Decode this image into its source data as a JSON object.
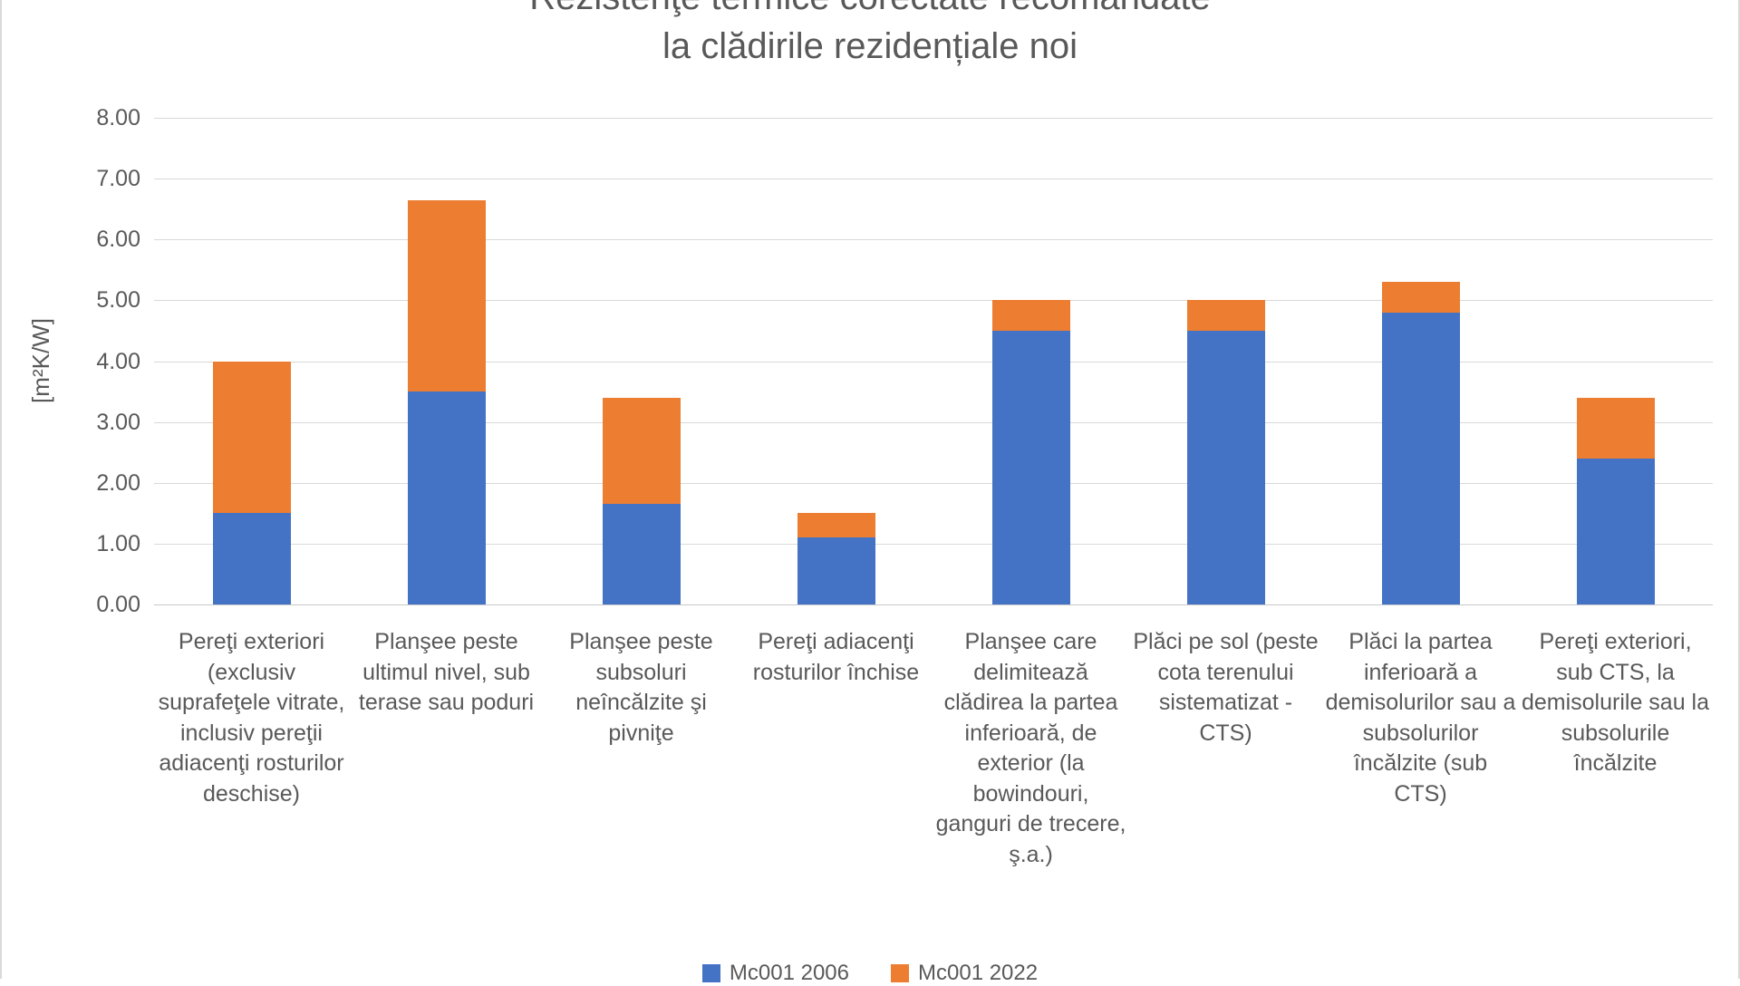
{
  "title": {
    "line1": "Rezistenţe termice corectate recomandate",
    "line2": "la clădirile rezidențiale noi"
  },
  "y_axis": {
    "label": "[m²K/W]",
    "ticks": [
      "8.00",
      "7.00",
      "6.00",
      "5.00",
      "4.00",
      "3.00",
      "2.00",
      "1.00",
      "0.00"
    ]
  },
  "chart_data": {
    "type": "bar",
    "stacked": true,
    "title": "Rezistenţe termice corectate recomandate la clădirile rezidențiale noi",
    "xlabel": "",
    "ylabel": "[m²K/W]",
    "ylim": [
      0,
      8
    ],
    "ytick_step": 1,
    "grid": true,
    "legend_position": "bottom",
    "categories": [
      "Pereţi exteriori (exclusiv suprafeţele vitrate, inclusiv pereţii adiacenţi rosturilor deschise)",
      "Planşee peste ultimul nivel, sub terase sau poduri",
      "Planşee peste subsoluri neîncălzite şi pivniţe",
      "Pereţi adiacenţi rosturilor închise",
      "Planşee care delimitează clădirea la partea inferioară, de exterior (la bowindouri, ganguri de trecere, ş.a.)",
      "Plăci pe sol (peste cota terenului sistematizat - CTS)",
      "Plăci la partea inferioară a demisolurilor sau a subsolurilor încălzite (sub CTS)",
      "Pereţi exteriori, sub CTS, la demisolurile sau la subsolurile încălzite"
    ],
    "series": [
      {
        "name": "Mc001 2006",
        "color": "#4472C4",
        "values": [
          1.5,
          3.5,
          1.65,
          1.1,
          4.5,
          4.5,
          4.8,
          2.4
        ]
      },
      {
        "name": "Mc001 2022",
        "color": "#ED7D31",
        "values": [
          2.5,
          3.15,
          1.75,
          0.4,
          0.5,
          0.5,
          0.5,
          1.0
        ],
        "stack_totals": [
          4.0,
          6.65,
          3.4,
          1.5,
          5.0,
          5.0,
          5.3,
          3.4
        ]
      }
    ],
    "colors": {
      "grid": "#d9d9d9",
      "axis_text": "#595959",
      "series1": "#4472C4",
      "series2": "#ED7D31"
    }
  }
}
